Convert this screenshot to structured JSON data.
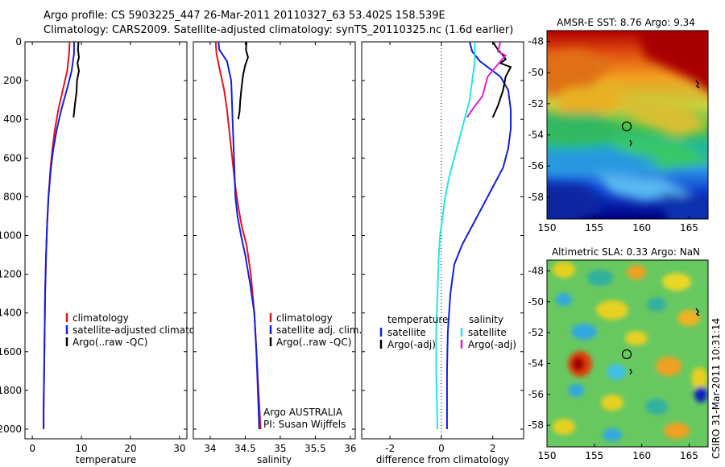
{
  "header": {
    "line1": "Argo profile: CS 5903225_447 26-Mar-2011 20110327_63 53.402S 158.539E",
    "line2": "Climatology: CARS2009. Satellite-adjusted climatology: synTS_20110325.nc (1.6d earlier)"
  },
  "colors": {
    "climatology": "#e8101a",
    "satellite": "#1020e0",
    "argo": "#000000",
    "diff_satellite": "#20e8e8",
    "diff_argo": "#e020d0"
  },
  "credit": "CSIRO 31-Mar-2011 10:31:14",
  "chart_data": [
    {
      "id": "temperature",
      "type": "line",
      "xlabel": "temperature",
      "ylabel": "",
      "xlim": [
        -1.5,
        31.5
      ],
      "ylim": [
        2050,
        0
      ],
      "x_ticks": [
        0,
        10,
        20,
        30
      ],
      "y_ticks": [
        0,
        200,
        400,
        600,
        800,
        1000,
        1200,
        1400,
        1600,
        1800,
        2000
      ],
      "legend_position": "bottom-center",
      "series": [
        {
          "name": "climatology",
          "color_key": "climatology",
          "points": [
            [
              7.6,
              0
            ],
            [
              7.5,
              60
            ],
            [
              7.1,
              150
            ],
            [
              6.2,
              250
            ],
            [
              5.3,
              350
            ],
            [
              4.6,
              450
            ],
            [
              4.1,
              550
            ],
            [
              3.7,
              650
            ],
            [
              3.3,
              800
            ],
            [
              3.0,
              950
            ],
            [
              2.8,
              1100
            ],
            [
              2.6,
              1300
            ],
            [
              2.5,
              1500
            ],
            [
              2.4,
              1700
            ],
            [
              2.3,
              1900
            ],
            [
              2.3,
              2000
            ]
          ]
        },
        {
          "name": "satellite-adjusted climatology",
          "color_key": "satellite",
          "points": [
            [
              8.5,
              0
            ],
            [
              8.5,
              60
            ],
            [
              8.0,
              150
            ],
            [
              7.0,
              250
            ],
            [
              5.9,
              350
            ],
            [
              5.0,
              450
            ],
            [
              4.3,
              550
            ],
            [
              3.8,
              650
            ],
            [
              3.3,
              800
            ],
            [
              3.0,
              950
            ],
            [
              2.8,
              1100
            ],
            [
              2.6,
              1300
            ],
            [
              2.5,
              1500
            ],
            [
              2.4,
              1700
            ],
            [
              2.3,
              1900
            ],
            [
              2.3,
              2000
            ]
          ]
        },
        {
          "name": "Argo(..raw -QC)",
          "color_key": "argo",
          "points": [
            [
              9.4,
              0
            ],
            [
              9.3,
              40
            ],
            [
              9.5,
              80
            ],
            [
              9.2,
              110
            ],
            [
              9.5,
              150
            ],
            [
              9.1,
              200
            ],
            [
              9.0,
              260
            ],
            [
              8.7,
              320
            ],
            [
              8.4,
              390
            ]
          ]
        }
      ]
    },
    {
      "id": "salinity",
      "type": "line",
      "xlabel": "salinity",
      "ylabel": "",
      "xlim": [
        33.76,
        36.07
      ],
      "ylim": [
        2050,
        0
      ],
      "x_ticks": [
        34,
        34.5,
        35,
        35.5,
        36
      ],
      "y_ticks": [
        0,
        200,
        400,
        600,
        800,
        1000,
        1200,
        1400,
        1600,
        1800,
        2000
      ],
      "legend_position": "bottom-right",
      "series": [
        {
          "name": "climatology",
          "color_key": "climatology",
          "points": [
            [
              34.08,
              0
            ],
            [
              34.09,
              60
            ],
            [
              34.14,
              150
            ],
            [
              34.2,
              250
            ],
            [
              34.24,
              350
            ],
            [
              34.27,
              450
            ],
            [
              34.3,
              550
            ],
            [
              34.33,
              650
            ],
            [
              34.36,
              750
            ],
            [
              34.4,
              850
            ],
            [
              34.45,
              950
            ],
            [
              34.52,
              1050
            ],
            [
              34.58,
              1200
            ],
            [
              34.63,
              1400
            ],
            [
              34.66,
              1600
            ],
            [
              34.69,
              1800
            ],
            [
              34.72,
              2000
            ]
          ]
        },
        {
          "name": "satellite adj. clim.",
          "color_key": "satellite",
          "points": [
            [
              34.12,
              0
            ],
            [
              34.13,
              40
            ],
            [
              34.24,
              100
            ],
            [
              34.3,
              200
            ],
            [
              34.31,
              300
            ],
            [
              34.32,
              400
            ],
            [
              34.33,
              500
            ],
            [
              34.34,
              600
            ],
            [
              34.35,
              700
            ],
            [
              34.36,
              800
            ],
            [
              34.39,
              900
            ],
            [
              34.44,
              1000
            ],
            [
              34.5,
              1100
            ],
            [
              34.57,
              1250
            ],
            [
              34.63,
              1400
            ],
            [
              34.66,
              1600
            ],
            [
              34.68,
              1800
            ],
            [
              34.7,
              2000
            ]
          ]
        },
        {
          "name": "Argo(..raw -QC)",
          "color_key": "argo",
          "points": [
            [
              34.52,
              0
            ],
            [
              34.51,
              40
            ],
            [
              34.54,
              80
            ],
            [
              34.5,
              120
            ],
            [
              34.47,
              170
            ],
            [
              34.45,
              230
            ],
            [
              34.43,
              300
            ],
            [
              34.42,
              360
            ],
            [
              34.4,
              400
            ]
          ]
        }
      ],
      "annotation": [
        "Argo AUSTRALIA",
        "PI: Susan Wijffels"
      ]
    },
    {
      "id": "difference",
      "type": "line",
      "xlabel": "difference from climatology",
      "ylabel": "",
      "xlim": [
        -3.1,
        3.2
      ],
      "ylim": [
        2050,
        0
      ],
      "x_ticks": [
        -2,
        0,
        2
      ],
      "y_ticks": [
        0,
        200,
        400,
        600,
        800,
        1000,
        1200,
        1400,
        1600,
        1800,
        2000
      ],
      "zero_line": true,
      "legend_position": "bottom",
      "legend_groups": [
        "temperature",
        "salinity"
      ],
      "series": [
        {
          "name": "satellite",
          "group": "temperature",
          "color_key": "satellite",
          "points": [
            [
              1.1,
              0
            ],
            [
              1.2,
              50
            ],
            [
              1.5,
              100
            ],
            [
              2.3,
              180
            ],
            [
              2.6,
              250
            ],
            [
              2.7,
              350
            ],
            [
              2.7,
              450
            ],
            [
              2.6,
              550
            ],
            [
              2.4,
              650
            ],
            [
              2.0,
              750
            ],
            [
              1.6,
              850
            ],
            [
              1.2,
              950
            ],
            [
              0.8,
              1050
            ],
            [
              0.5,
              1150
            ],
            [
              0.35,
              1300
            ],
            [
              0.25,
              1500
            ],
            [
              0.22,
              1700
            ],
            [
              0.22,
              2000
            ]
          ]
        },
        {
          "name": "Argo(-adj)",
          "group": "temperature",
          "color_key": "argo",
          "points": [
            [
              2.0,
              0
            ],
            [
              2.2,
              40
            ],
            [
              2.4,
              70
            ],
            [
              2.5,
              90
            ],
            [
              2.3,
              110
            ],
            [
              2.7,
              130
            ],
            [
              2.5,
              180
            ],
            [
              2.4,
              250
            ],
            [
              2.2,
              330
            ],
            [
              2.0,
              390
            ]
          ]
        },
        {
          "name": "satellite",
          "group": "salinity",
          "color_key": "diff_satellite",
          "points": [
            [
              1.3,
              0
            ],
            [
              1.3,
              40
            ],
            [
              1.3,
              100
            ],
            [
              1.2,
              200
            ],
            [
              1.1,
              300
            ],
            [
              0.9,
              400
            ],
            [
              0.7,
              500
            ],
            [
              0.5,
              600
            ],
            [
              0.3,
              700
            ],
            [
              0.15,
              800
            ],
            [
              0.05,
              900
            ],
            [
              -0.05,
              1000
            ],
            [
              -0.1,
              1100
            ],
            [
              -0.15,
              1300
            ],
            [
              -0.2,
              1500
            ],
            [
              -0.2,
              1700
            ],
            [
              -0.15,
              2000
            ]
          ]
        },
        {
          "name": "Argo(-adj)",
          "group": "salinity",
          "color_key": "diff_argo",
          "points": [
            [
              2.3,
              0
            ],
            [
              2.2,
              50
            ],
            [
              2.5,
              70
            ],
            [
              2.3,
              100
            ],
            [
              1.8,
              180
            ],
            [
              1.6,
              280
            ],
            [
              1.2,
              350
            ],
            [
              1.0,
              390
            ]
          ]
        }
      ]
    },
    {
      "id": "sst_map",
      "type": "heatmap",
      "title": "AMSR-E SST: 8.76 Argo: 9.34",
      "xlim": [
        150,
        167
      ],
      "ylim": [
        -59.4,
        -47.3
      ],
      "x_ticks": [
        150,
        155,
        160,
        165
      ],
      "y_ticks": [
        -48,
        -50,
        -52,
        -54,
        -56,
        -58
      ],
      "profile_marker": {
        "lon": 158.54,
        "lat": -53.4
      }
    },
    {
      "id": "sla_map",
      "type": "heatmap",
      "title": "Altimetric SLA: 0.33 Argo: NaN",
      "xlim": [
        150,
        167
      ],
      "ylim": [
        -59.4,
        -47.3
      ],
      "x_ticks": [
        150,
        155,
        160,
        165
      ],
      "y_ticks": [
        -48,
        -50,
        -52,
        -54,
        -56,
        -58
      ],
      "profile_marker": {
        "lon": 158.54,
        "lat": -53.4
      }
    }
  ]
}
